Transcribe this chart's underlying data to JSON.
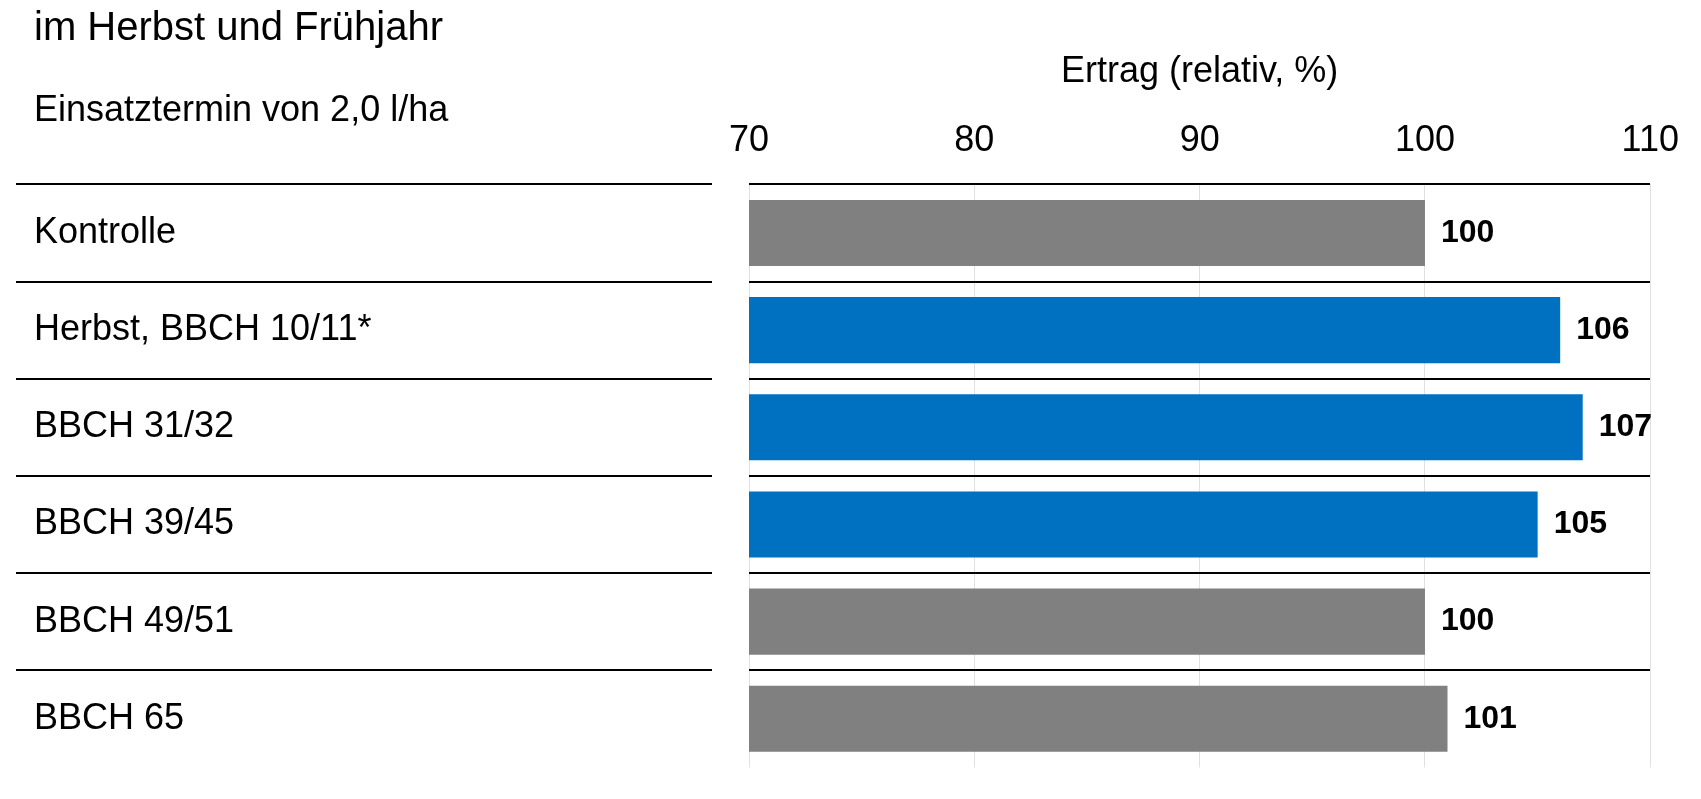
{
  "chart_data": {
    "type": "bar",
    "orientation": "horizontal",
    "title": "im Herbst und Frühjahr",
    "ylabel": "Einsatztermin von 2,0 l/ha",
    "x2label": "Ertrag (relativ, %)",
    "categories": [
      "Kontrolle",
      "Herbst, BBCH 10/11*",
      "BBCH 31/32",
      "BBCH 39/45",
      "BBCH 49/51",
      "BBCH 65"
    ],
    "values": [
      100,
      106,
      107,
      105,
      100,
      101
    ],
    "colors": [
      "#808080",
      "#0070c0",
      "#0070c0",
      "#0070c0",
      "#808080",
      "#808080"
    ],
    "x2lim": [
      70,
      110
    ],
    "x2ticks": [
      70,
      80,
      90,
      100,
      110
    ],
    "grid": "x",
    "data_labels": true
  }
}
